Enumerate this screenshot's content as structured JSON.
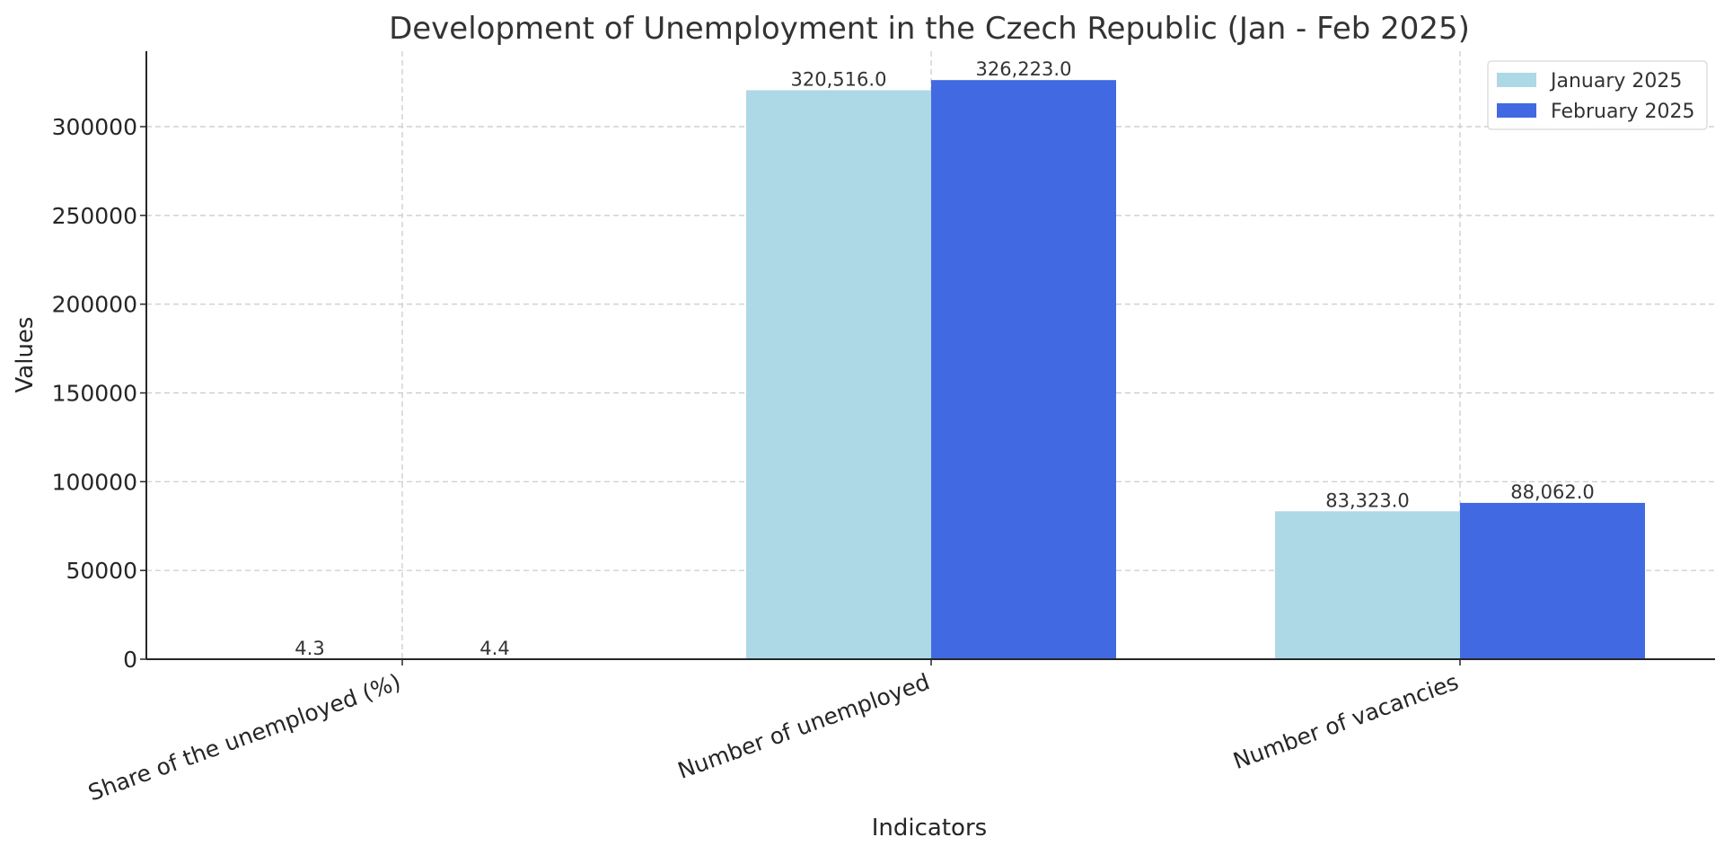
{
  "chart_data": {
    "type": "bar",
    "title": "Development of Unemployment in the Czech Republic (Jan - Feb 2025)",
    "xlabel": "Indicators",
    "ylabel": "Values",
    "categories": [
      "Share of the unemployed (%)",
      "Number of unemployed",
      "Number of vacancies"
    ],
    "series": [
      {
        "name": "January 2025",
        "color": "#add8e6",
        "values": [
          4.3,
          320516.0,
          83323.0
        ],
        "labels": [
          "4.3",
          "320,516.0",
          "83,323.0"
        ]
      },
      {
        "name": "February 2025",
        "color": "#4169e1",
        "values": [
          4.4,
          326223.0,
          88062.0
        ],
        "labels": [
          "4.4",
          "326,223.0",
          "88,062.0"
        ]
      }
    ],
    "ylim": [
      0,
      342500
    ],
    "yticks": [
      0,
      50000,
      100000,
      150000,
      200000,
      250000,
      300000
    ],
    "ytick_labels": [
      "0",
      "50000",
      "100000",
      "150000",
      "200000",
      "250000",
      "300000"
    ],
    "grid": true,
    "legend_position": "top-right"
  }
}
